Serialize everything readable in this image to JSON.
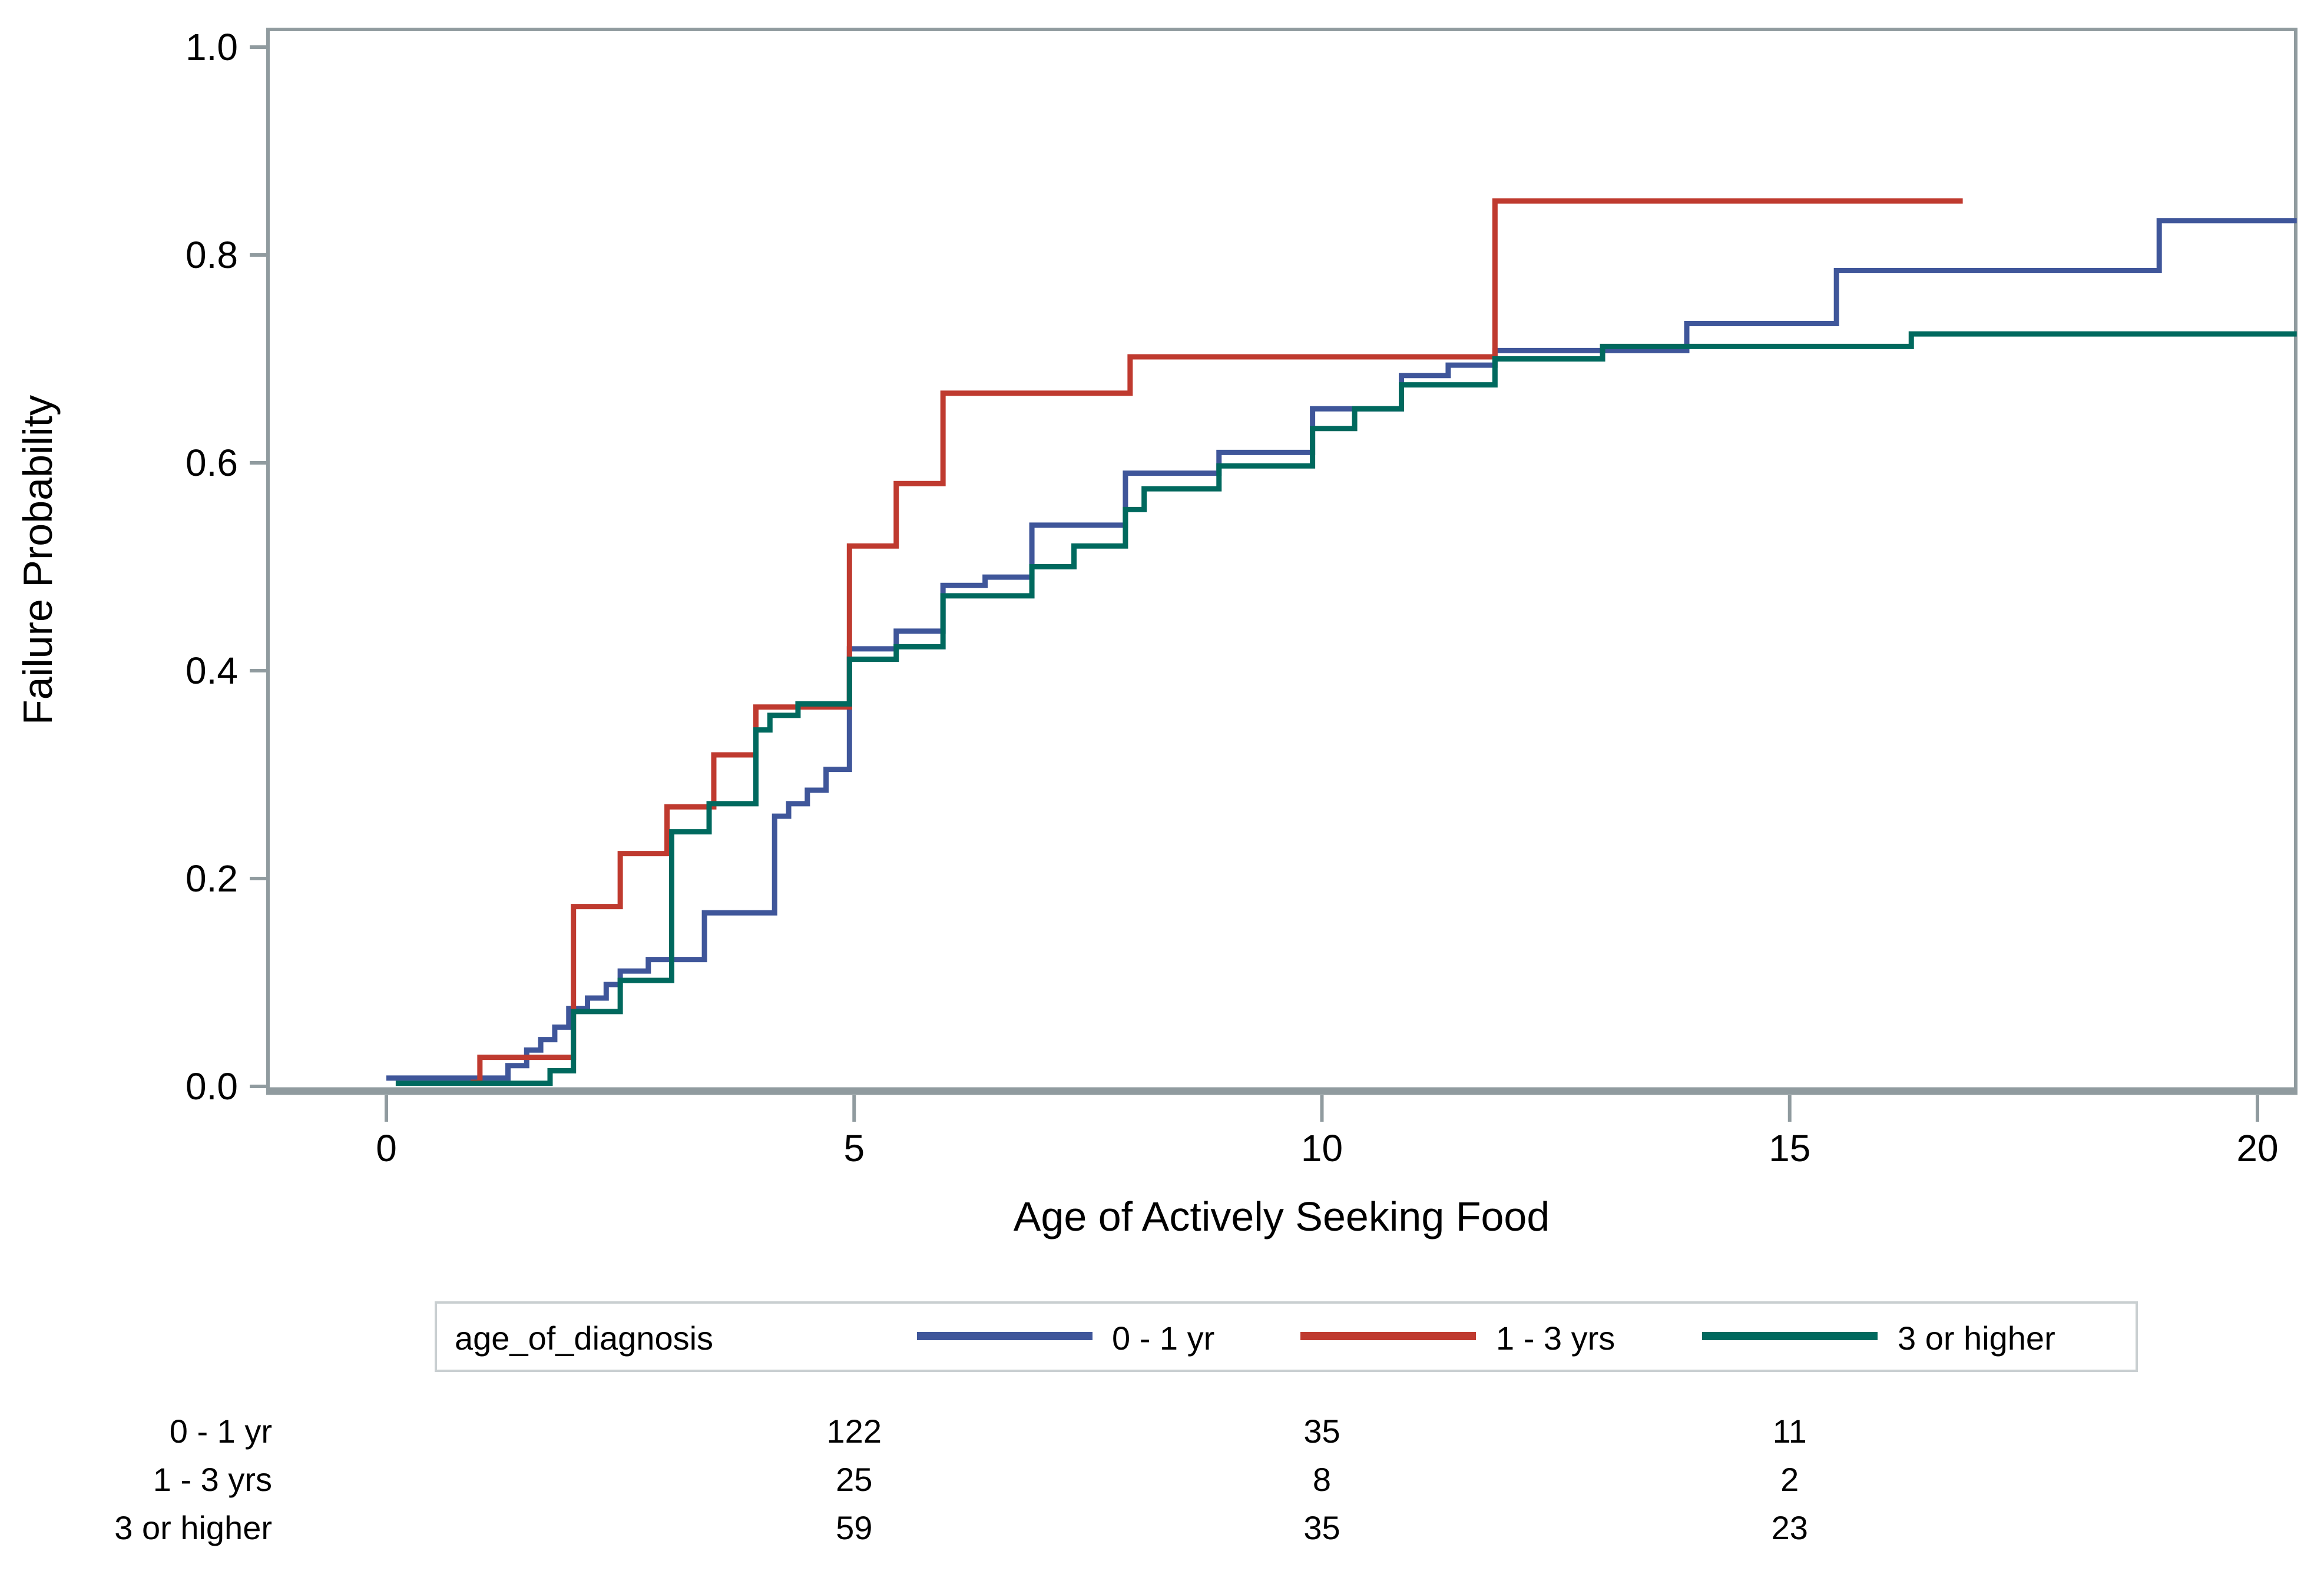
{
  "chart_data": {
    "type": "line",
    "step": true,
    "xlabel": "Age of Actively Seeking Food",
    "ylabel": "Failure Probability",
    "x_ticks": [
      "0",
      "5",
      "10",
      "15",
      "20"
    ],
    "x_tick_values": [
      0,
      5,
      10,
      15,
      20
    ],
    "y_ticks": [
      "0.0",
      "0.2",
      "0.4",
      "0.6",
      "0.8",
      "1.0"
    ],
    "y_tick_values": [
      0.0,
      0.2,
      0.4,
      0.6,
      0.8,
      1.0
    ],
    "xlim": [
      -1.27,
      20.42
    ],
    "ylim": [
      -0.004,
      1.017
    ],
    "grid": false,
    "legend_position": "bottom",
    "legend": {
      "title": "age_of_diagnosis",
      "entries": [
        {
          "label": "0 - 1 yr",
          "color": "#3F569A"
        },
        {
          "label": "1 - 3 yrs",
          "color": "#BF3A2F"
        },
        {
          "label": "3 or higher",
          "color": "#00695E"
        }
      ]
    },
    "series": [
      {
        "name": "0 - 1 yr",
        "color": "#3F569A",
        "end_age": 20.42,
        "points": [
          [
            0,
            0.008
          ],
          [
            1.3,
            0.02
          ],
          [
            1.5,
            0.035
          ],
          [
            1.65,
            0.045
          ],
          [
            1.8,
            0.057
          ],
          [
            1.95,
            0.075
          ],
          [
            2.15,
            0.085
          ],
          [
            2.35,
            0.098
          ],
          [
            2.5,
            0.111
          ],
          [
            2.8,
            0.122
          ],
          [
            3.4,
            0.167
          ],
          [
            4.15,
            0.26
          ],
          [
            4.3,
            0.272
          ],
          [
            4.5,
            0.285
          ],
          [
            4.7,
            0.305
          ],
          [
            4.95,
            0.421
          ],
          [
            5.45,
            0.438
          ],
          [
            5.95,
            0.482
          ],
          [
            6.4,
            0.49
          ],
          [
            6.9,
            0.54
          ],
          [
            7.9,
            0.59
          ],
          [
            8.9,
            0.61
          ],
          [
            9.9,
            0.652
          ],
          [
            10.85,
            0.684
          ],
          [
            11.35,
            0.694
          ],
          [
            11.85,
            0.708
          ],
          [
            13.9,
            0.734
          ],
          [
            15.5,
            0.785
          ],
          [
            18.95,
            0.833
          ]
        ]
      },
      {
        "name": "1 - 3 yrs",
        "color": "#BF3A2F",
        "end_age": 16.85,
        "points": [
          [
            0.9,
            0.004
          ],
          [
            1.0,
            0.028
          ],
          [
            2.0,
            0.173
          ],
          [
            2.5,
            0.224
          ],
          [
            3.0,
            0.269
          ],
          [
            3.5,
            0.319
          ],
          [
            3.95,
            0.365
          ],
          [
            4.95,
            0.52
          ],
          [
            5.45,
            0.58
          ],
          [
            5.95,
            0.667
          ],
          [
            7.95,
            0.702
          ],
          [
            11.85,
            0.852
          ]
        ]
      },
      {
        "name": "3 or higher",
        "color": "#00695E",
        "end_age": 20.42,
        "points": [
          [
            0.1,
            0.003
          ],
          [
            1.75,
            0.015
          ],
          [
            2.0,
            0.072
          ],
          [
            2.5,
            0.102
          ],
          [
            3.05,
            0.245
          ],
          [
            3.45,
            0.272
          ],
          [
            3.95,
            0.343
          ],
          [
            4.1,
            0.357
          ],
          [
            4.4,
            0.368
          ],
          [
            4.95,
            0.411
          ],
          [
            5.45,
            0.423
          ],
          [
            5.95,
            0.472
          ],
          [
            6.9,
            0.5
          ],
          [
            7.35,
            0.52
          ],
          [
            7.9,
            0.555
          ],
          [
            8.1,
            0.575
          ],
          [
            8.9,
            0.597
          ],
          [
            9.9,
            0.633
          ],
          [
            10.35,
            0.652
          ],
          [
            10.85,
            0.675
          ],
          [
            11.85,
            0.7
          ],
          [
            13.0,
            0.712
          ],
          [
            16.3,
            0.724
          ]
        ]
      }
    ],
    "at_risk_table": {
      "column_ages": [
        5,
        10,
        15
      ],
      "rows": [
        {
          "label": "0 - 1 yr",
          "color": "#3F569A",
          "values": [
            "122",
            "35",
            "11"
          ]
        },
        {
          "label": "1 - 3 yrs",
          "color": "#BF3A2F",
          "values": [
            "25",
            "8",
            "2"
          ]
        },
        {
          "label": "3 or higher",
          "color": "#00695E",
          "values": [
            "59",
            "35",
            "23"
          ]
        }
      ]
    },
    "frame_color": "#909B9F"
  }
}
